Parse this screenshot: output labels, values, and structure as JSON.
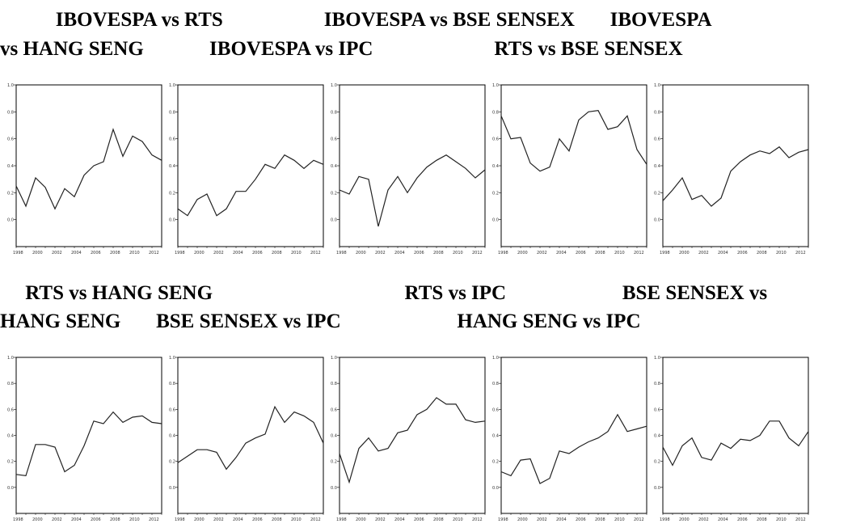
{
  "titles": {
    "line1": "           IBOVESPA vs RTS                    IBOVESPA vs BSE SENSEX       IBOVESPA",
    "line2": "vs HANG SENG             IBOVESPA vs IPC                        RTS vs BSE SENSEX",
    "line3": "     RTS vs HANG SENG                                      RTS vs IPC                       BSE SENSEX vs",
    "line4": "HANG SENG       BSE SENSEX vs IPC                       HANG SENG vs IPC"
  },
  "chart_data": [
    {
      "type": "line",
      "title": "IBOVESPA vs RTS",
      "x": [
        1998,
        1999,
        2000,
        2001,
        2002,
        2003,
        2004,
        2005,
        2006,
        2007,
        2008,
        2009,
        2010,
        2011,
        2012,
        2013
      ],
      "values": [
        0.25,
        0.1,
        0.31,
        0.24,
        0.08,
        0.23,
        0.17,
        0.33,
        0.4,
        0.43,
        0.67,
        0.47,
        0.62,
        0.58,
        0.48,
        0.44
      ],
      "ylim": [
        -0.2,
        1.0
      ],
      "yticks": [
        "1.0",
        "0.8",
        "0.6",
        "0.4",
        "0.2",
        "0.0"
      ],
      "xticks": [
        "1998",
        "2000",
        "2002",
        "2004",
        "2006",
        "2008",
        "2010",
        "2012"
      ]
    },
    {
      "type": "line",
      "title": "IBOVESPA vs BSE SENSEX",
      "x": [
        1998,
        1999,
        2000,
        2001,
        2002,
        2003,
        2004,
        2005,
        2006,
        2007,
        2008,
        2009,
        2010,
        2011,
        2012,
        2013
      ],
      "values": [
        0.08,
        0.03,
        0.15,
        0.19,
        0.03,
        0.08,
        0.21,
        0.21,
        0.3,
        0.41,
        0.38,
        0.48,
        0.44,
        0.38,
        0.44,
        0.41
      ],
      "ylim": [
        -0.2,
        1.0
      ],
      "yticks": [
        "1.0",
        "0.8",
        "0.6",
        "0.4",
        "0.2",
        "0.0"
      ],
      "xticks": [
        "1998",
        "2000",
        "2002",
        "2004",
        "2006",
        "2008",
        "2010",
        "2012"
      ]
    },
    {
      "type": "line",
      "title": "IBOVESPA vs HANG SENG",
      "x": [
        1998,
        1999,
        2000,
        2001,
        2002,
        2003,
        2004,
        2005,
        2006,
        2007,
        2008,
        2009,
        2010,
        2011,
        2012,
        2013
      ],
      "values": [
        0.22,
        0.19,
        0.32,
        0.3,
        -0.05,
        0.22,
        0.32,
        0.2,
        0.31,
        0.39,
        0.44,
        0.48,
        0.43,
        0.38,
        0.31,
        0.37
      ],
      "ylim": [
        -0.2,
        1.0
      ],
      "yticks": [
        "1.0",
        "0.8",
        "0.6",
        "0.4",
        "0.2",
        "0.0"
      ],
      "xticks": [
        "1998",
        "2000",
        "2002",
        "2004",
        "2006",
        "2008",
        "2010",
        "2012"
      ]
    },
    {
      "type": "line",
      "title": "IBOVESPA vs IPC",
      "x": [
        1998,
        1999,
        2000,
        2001,
        2002,
        2003,
        2004,
        2005,
        2006,
        2007,
        2008,
        2009,
        2010,
        2011,
        2012,
        2013
      ],
      "values": [
        0.77,
        0.6,
        0.61,
        0.42,
        0.36,
        0.39,
        0.6,
        0.51,
        0.74,
        0.8,
        0.81,
        0.67,
        0.69,
        0.77,
        0.52,
        0.41
      ],
      "ylim": [
        -0.2,
        1.0
      ],
      "yticks": [
        "1.0",
        "0.8",
        "0.6",
        "0.4",
        "0.2",
        "0.0"
      ],
      "xticks": [
        "1998",
        "2000",
        "2002",
        "2004",
        "2006",
        "2008",
        "2010",
        "2012"
      ]
    },
    {
      "type": "line",
      "title": "RTS vs BSE SENSEX",
      "x": [
        1998,
        1999,
        2000,
        2001,
        2002,
        2003,
        2004,
        2005,
        2006,
        2007,
        2008,
        2009,
        2010,
        2011,
        2012,
        2013
      ],
      "values": [
        0.14,
        0.22,
        0.31,
        0.15,
        0.18,
        0.1,
        0.16,
        0.36,
        0.43,
        0.48,
        0.51,
        0.49,
        0.54,
        0.46,
        0.5,
        0.52
      ],
      "ylim": [
        -0.2,
        1.0
      ],
      "yticks": [
        "1.0",
        "0.8",
        "0.6",
        "0.4",
        "0.2",
        "0.0"
      ],
      "xticks": [
        "1998",
        "2000",
        "2002",
        "2004",
        "2006",
        "2008",
        "2010",
        "2012"
      ]
    },
    {
      "type": "line",
      "title": "RTS vs HANG SENG",
      "x": [
        1998,
        1999,
        2000,
        2001,
        2002,
        2003,
        2004,
        2005,
        2006,
        2007,
        2008,
        2009,
        2010,
        2011,
        2012,
        2013
      ],
      "values": [
        0.1,
        0.09,
        0.33,
        0.33,
        0.31,
        0.12,
        0.17,
        0.32,
        0.51,
        0.49,
        0.58,
        0.5,
        0.54,
        0.55,
        0.5,
        0.49
      ],
      "ylim": [
        -0.2,
        1.0
      ],
      "yticks": [
        "1.0",
        "0.8",
        "0.6",
        "0.4",
        "0.2",
        "0.0"
      ],
      "xticks": [
        "1998",
        "2000",
        "2002",
        "2004",
        "2006",
        "2008",
        "2010",
        "2012"
      ]
    },
    {
      "type": "line",
      "title": "RTS vs IPC",
      "x": [
        1998,
        1999,
        2000,
        2001,
        2002,
        2003,
        2004,
        2005,
        2006,
        2007,
        2008,
        2009,
        2010,
        2011,
        2012,
        2013
      ],
      "values": [
        0.19,
        0.24,
        0.29,
        0.29,
        0.27,
        0.14,
        0.23,
        0.34,
        0.38,
        0.41,
        0.62,
        0.5,
        0.58,
        0.55,
        0.5,
        0.34
      ],
      "ylim": [
        -0.2,
        1.0
      ],
      "yticks": [
        "1.0",
        "0.8",
        "0.6",
        "0.4",
        "0.2",
        "0.0"
      ],
      "xticks": [
        "1998",
        "2000",
        "2002",
        "2004",
        "2006",
        "2008",
        "2010",
        "2012"
      ]
    },
    {
      "type": "line",
      "title": "BSE SENSEX vs HANG SENG",
      "x": [
        1998,
        1999,
        2000,
        2001,
        2002,
        2003,
        2004,
        2005,
        2006,
        2007,
        2008,
        2009,
        2010,
        2011,
        2012,
        2013
      ],
      "values": [
        0.26,
        0.04,
        0.3,
        0.38,
        0.28,
        0.3,
        0.42,
        0.44,
        0.56,
        0.6,
        0.69,
        0.64,
        0.64,
        0.52,
        0.5,
        0.51
      ],
      "ylim": [
        -0.2,
        1.0
      ],
      "yticks": [
        "1.0",
        "0.8",
        "0.6",
        "0.4",
        "0.2",
        "0.0"
      ],
      "xticks": [
        "1998",
        "2000",
        "2002",
        "2004",
        "2006",
        "2008",
        "2010",
        "2012"
      ]
    },
    {
      "type": "line",
      "title": "BSE SENSEX vs IPC",
      "x": [
        1998,
        1999,
        2000,
        2001,
        2002,
        2003,
        2004,
        2005,
        2006,
        2007,
        2008,
        2009,
        2010,
        2011,
        2012,
        2013
      ],
      "values": [
        0.12,
        0.09,
        0.21,
        0.22,
        0.03,
        0.07,
        0.28,
        0.26,
        0.31,
        0.35,
        0.38,
        0.43,
        0.56,
        0.43,
        0.45,
        0.47
      ],
      "ylim": [
        -0.2,
        1.0
      ],
      "yticks": [
        "1.0",
        "0.8",
        "0.6",
        "0.4",
        "0.2",
        "0.0"
      ],
      "xticks": [
        "1998",
        "2000",
        "2002",
        "2004",
        "2006",
        "2008",
        "2010",
        "2012"
      ]
    },
    {
      "type": "line",
      "title": "HANG SENG vs IPC",
      "x": [
        1998,
        1999,
        2000,
        2001,
        2002,
        2003,
        2004,
        2005,
        2006,
        2007,
        2008,
        2009,
        2010,
        2011,
        2012,
        2013
      ],
      "values": [
        0.31,
        0.17,
        0.32,
        0.38,
        0.23,
        0.21,
        0.34,
        0.3,
        0.37,
        0.36,
        0.4,
        0.51,
        0.51,
        0.38,
        0.32,
        0.43
      ],
      "ylim": [
        -0.2,
        1.0
      ],
      "yticks": [
        "1.0",
        "0.8",
        "0.6",
        "0.4",
        "0.2",
        "0.0"
      ],
      "xticks": [
        "1998",
        "2000",
        "2002",
        "2004",
        "2006",
        "2008",
        "2010",
        "2012"
      ]
    }
  ]
}
